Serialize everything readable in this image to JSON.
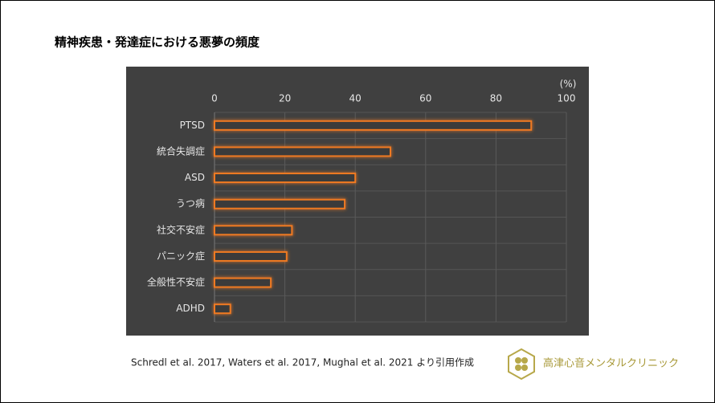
{
  "chart_data": {
    "type": "barh",
    "title": "精神疾患・発達症における悪夢の頻度",
    "categories": [
      "PTSD",
      "統合失調症",
      "ASD",
      "うつ病",
      "社交不安症",
      "パニック症",
      "全般性不安症",
      "ADHD"
    ],
    "values": [
      90,
      50,
      40,
      37,
      22,
      20.5,
      16,
      4.5
    ],
    "color": "#ef7a22",
    "xlim": [
      0,
      100
    ],
    "xticks": [
      0,
      20,
      40,
      60,
      80,
      100
    ],
    "x_unit": "(%)",
    "grid": true
  },
  "footer": {
    "source": "Schredl et al. 2017, Waters et al. 2017, Mughal et al. 2021 より引用作成",
    "brand": "高津心音メンタルクリニック"
  }
}
